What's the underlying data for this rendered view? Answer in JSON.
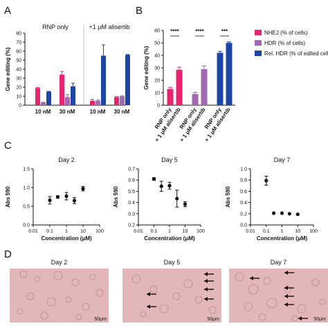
{
  "panels": {
    "a": "A",
    "b": "B",
    "c": "C",
    "d": "D"
  },
  "colors": {
    "nhej": "#e8236f",
    "hdr": "#a268b2",
    "rel": "#1c45a6",
    "micro_bg": "#e3b7b7"
  },
  "chart_data": [
    {
      "id": "A",
      "type": "bar",
      "ylabel": "Gene editing (%)",
      "ylim": [
        0,
        80
      ],
      "yticks": [
        0,
        10,
        20,
        30,
        40,
        50,
        60,
        70,
        80
      ],
      "groups": [
        "RNP only",
        "+1 μM alisertib"
      ],
      "categories": [
        "10 nM",
        "30 nM",
        "10 nM",
        "30 nM"
      ],
      "series": [
        {
          "name": "NHEJ (% of cells)",
          "values": [
            19,
            34,
            5,
            9
          ],
          "errors": [
            0.6,
            3.5,
            1.5,
            0.6
          ]
        },
        {
          "name": "HDR (% of cells)",
          "values": [
            3,
            9,
            5,
            10
          ],
          "errors": [
            0.3,
            3,
            1,
            0.6
          ]
        },
        {
          "name": "Rel. HDR (% of edited cells)",
          "values": [
            15,
            21,
            55,
            56
          ],
          "errors": [
            0.4,
            3.5,
            12,
            0.4
          ]
        }
      ]
    },
    {
      "id": "B",
      "type": "bar",
      "ylabel": "Gene editing (%)",
      "ylim": [
        0,
        60
      ],
      "yticks": [
        0,
        10,
        20,
        30,
        40,
        50,
        60
      ],
      "categories": [
        "RNP only",
        "+ 1 μM alisertib",
        "RNP only",
        "+ 1 μM alisertib",
        "RNP only",
        "+ 1 μM alisertib"
      ],
      "values": [
        13,
        28.5,
        9,
        29,
        42,
        50
      ],
      "errors": [
        1.3,
        2,
        1.3,
        2.5,
        1.2,
        0.8
      ],
      "series_index": [
        0,
        0,
        1,
        1,
        2,
        2
      ],
      "significance": [
        "****",
        "****",
        "***"
      ],
      "legend": [
        "NHEJ (% of cells)",
        "HDR (% of cells)",
        "Rel. HDR (% of edited cells)"
      ]
    },
    {
      "id": "C1",
      "type": "scatter",
      "title": "Day 2",
      "xlabel": "Concentration (μM)",
      "ylabel": "Abs 590",
      "xscale": "log",
      "xlim": [
        0.01,
        100
      ],
      "ylim": [
        0,
        1.5
      ],
      "xticks": [
        "0.01",
        "0.1",
        "1",
        "10",
        "100"
      ],
      "yticks": [
        "0.0",
        "0.5",
        "1.0",
        "1.5"
      ],
      "x": [
        0.1,
        0.3,
        1,
        3,
        10
      ],
      "y": [
        0.66,
        0.75,
        0.77,
        0.65,
        0.97
      ],
      "errors": [
        0.1,
        0.03,
        0.1,
        0.08,
        0.06
      ]
    },
    {
      "id": "C2",
      "type": "scatter",
      "title": "Day 5",
      "xlabel": "Concentration (μM)",
      "ylabel": "Abs 590",
      "xscale": "log",
      "xlim": [
        0.01,
        100
      ],
      "ylim": [
        0.2,
        0.7
      ],
      "xticks": [
        "0.01",
        "0.1",
        "1",
        "10",
        "100"
      ],
      "yticks": [
        "0.2",
        "0.3",
        "0.4",
        "0.5",
        "0.6",
        "0.7"
      ],
      "x": [
        0.1,
        0.3,
        1,
        3,
        10
      ],
      "y": [
        0.61,
        0.545,
        0.55,
        0.435,
        0.385
      ],
      "errors": [
        0.012,
        0.045,
        0.03,
        0.075,
        0.022
      ]
    },
    {
      "id": "C3",
      "type": "scatter",
      "title": "Day 7",
      "xlabel": "Concentration (μM)",
      "ylabel": "Abs 590",
      "xscale": "log",
      "xlim": [
        0.01,
        100
      ],
      "ylim": [
        0,
        1.0
      ],
      "xticks": [
        "0.01",
        "0.1",
        "1",
        "10",
        "100"
      ],
      "yticks": [
        "0.0",
        "0.2",
        "0.4",
        "0.6",
        "0.8",
        "1.0"
      ],
      "x": [
        0.1,
        0.3,
        1,
        3,
        10
      ],
      "y": [
        0.79,
        0.21,
        0.21,
        0.2,
        0.19
      ],
      "errors": [
        0.08,
        0,
        0,
        0,
        0
      ]
    }
  ],
  "micrographs": [
    {
      "title": "Day 2",
      "scale": "50μm",
      "arrows": 0
    },
    {
      "title": "Day 5",
      "scale": "50μm",
      "arrows": 6
    },
    {
      "title": "Day 7",
      "scale": "50μm",
      "arrows": 6
    }
  ]
}
